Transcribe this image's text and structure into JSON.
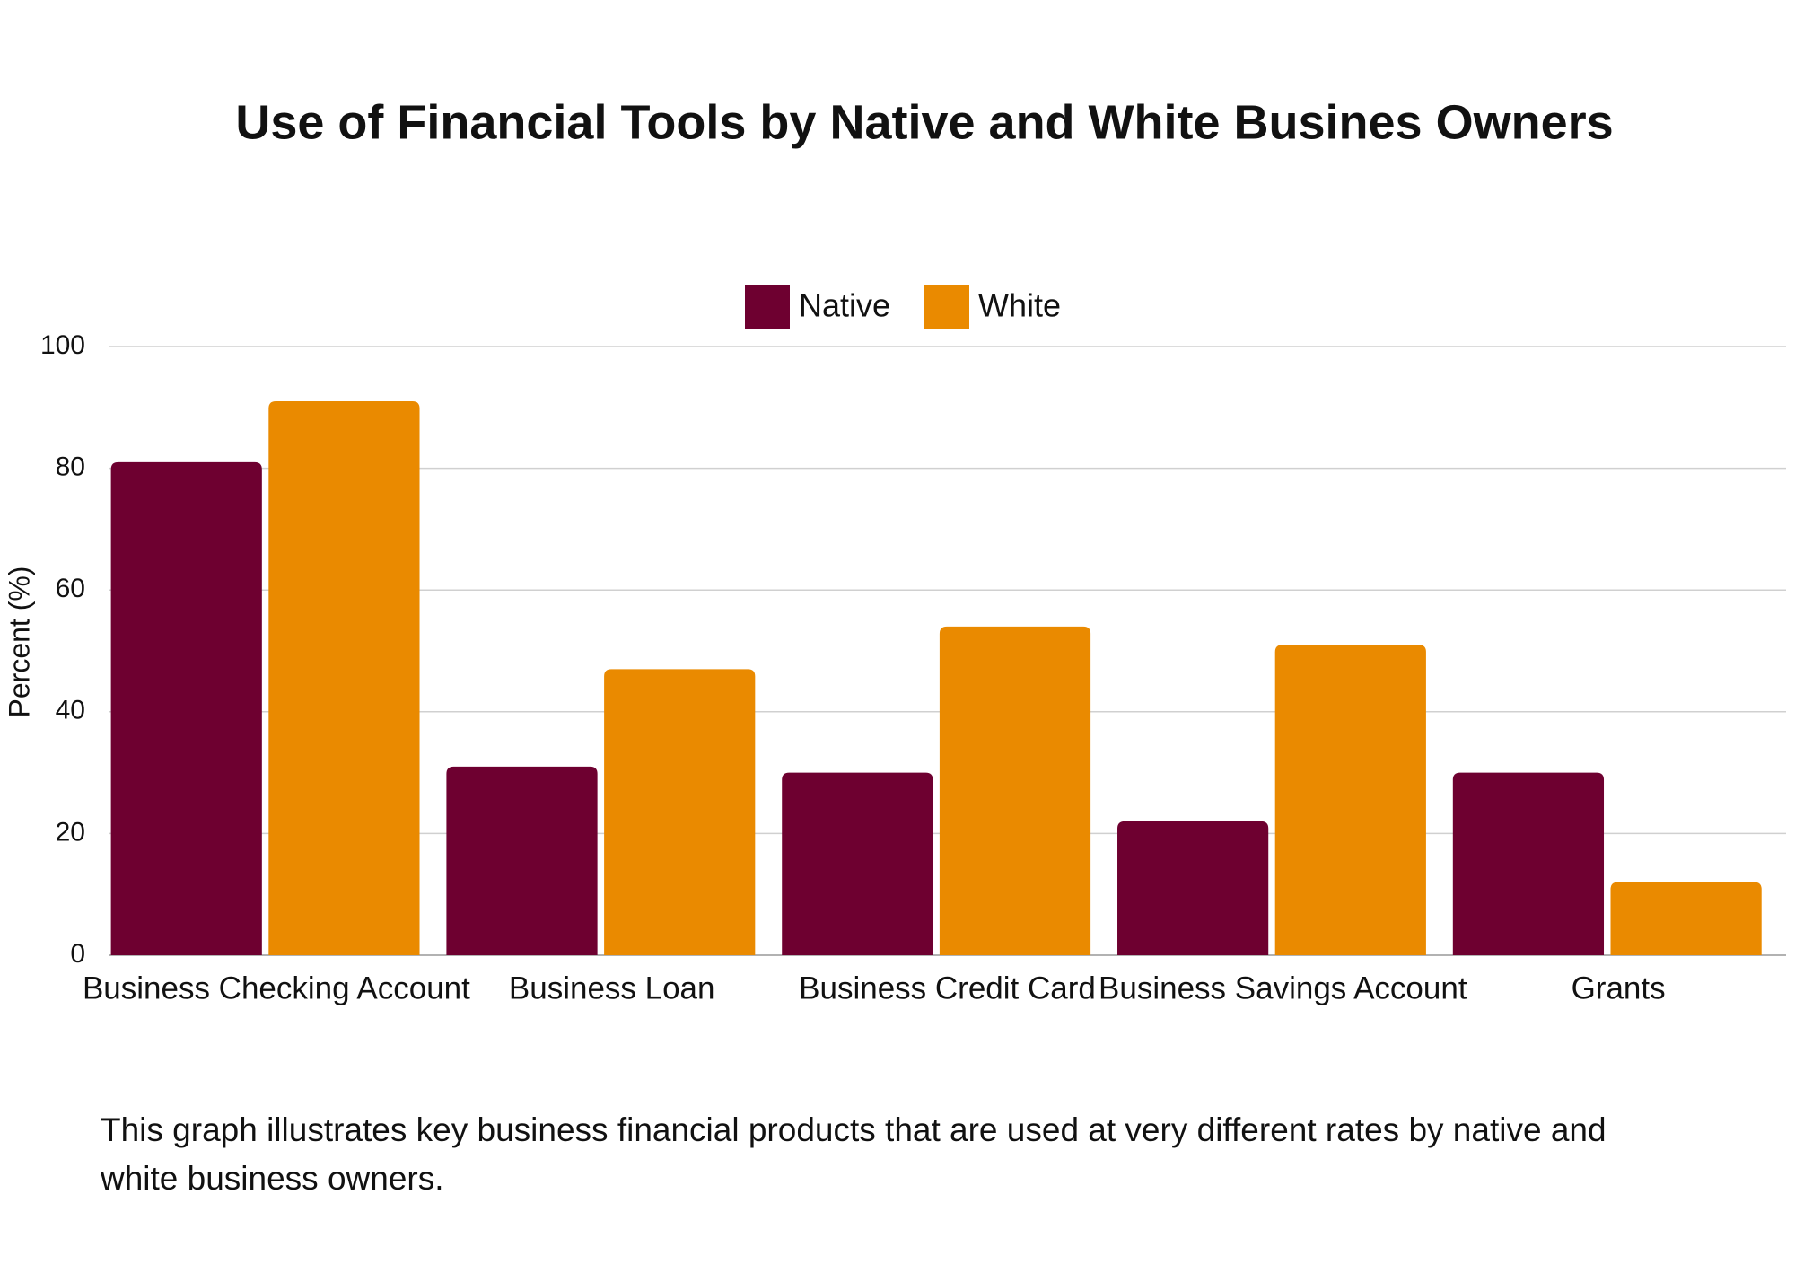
{
  "chart_data": {
    "type": "bar",
    "title": "Use of Financial Tools by Native and White Busines Owners",
    "y_label": "Percent (%)",
    "categories": [
      "Business Checking Account",
      "Business Loan",
      "Business Credit Card",
      "Business Savings Account",
      "Grants"
    ],
    "series": [
      {
        "name": "Native",
        "color": "#6e0030",
        "values": [
          81,
          31,
          30,
          22,
          30
        ]
      },
      {
        "name": "White",
        "color": "#ea8a00",
        "values": [
          91,
          47,
          54,
          51,
          12
        ]
      }
    ],
    "ylim": [
      0,
      100
    ],
    "yticks": [
      0,
      20,
      40,
      60,
      80,
      100
    ],
    "grid": true,
    "legend": "top"
  },
  "caption": "This graph illustrates key business financial products that are used at very different rates by native and white business owners."
}
